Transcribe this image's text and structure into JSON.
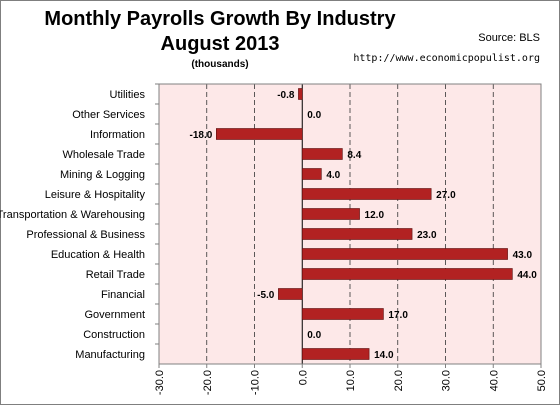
{
  "title_line1": "Monthly Payrolls Growth By Industry",
  "title_line2": "August 2013",
  "subtitle": "(thousands)",
  "source": "Source: BLS",
  "url": "http://www.economicpopulist.org",
  "colors": {
    "bar": "#b22222",
    "plot_bg": "#fde8e8",
    "gridline": "#333333"
  },
  "chart_data": {
    "type": "bar",
    "orientation": "horizontal",
    "categories": [
      "Utilities",
      "Other Services",
      "Information",
      "Wholesale Trade",
      "Mining & Logging",
      "Leisure & Hospitality",
      "Transportation & Warehousing",
      "Professional & Business",
      "Education & Health",
      "Retail Trade",
      "Financial",
      "Government",
      "Construction",
      "Manufacturing"
    ],
    "values": [
      -0.8,
      0.0,
      -18.0,
      8.4,
      4.0,
      27.0,
      12.0,
      23.0,
      43.0,
      44.0,
      -5.0,
      17.0,
      0.0,
      14.0
    ],
    "value_labels": [
      "-0.8",
      "0.0",
      "-18.0",
      "8.4",
      "4.0",
      "27.0",
      "12.0",
      "23.0",
      "43.0",
      "44.0",
      "-5.0",
      "17.0",
      "0.0",
      "14.0"
    ],
    "xlim": [
      -30,
      50
    ],
    "ticks": [
      -30,
      -20,
      -10,
      0,
      10,
      20,
      30,
      40,
      50
    ],
    "tick_labels": [
      "-30.0",
      "-20.0",
      "-10.0",
      "0.0",
      "10.0",
      "20.0",
      "30.0",
      "40.0",
      "50.0"
    ],
    "grid": true,
    "legend": false
  }
}
